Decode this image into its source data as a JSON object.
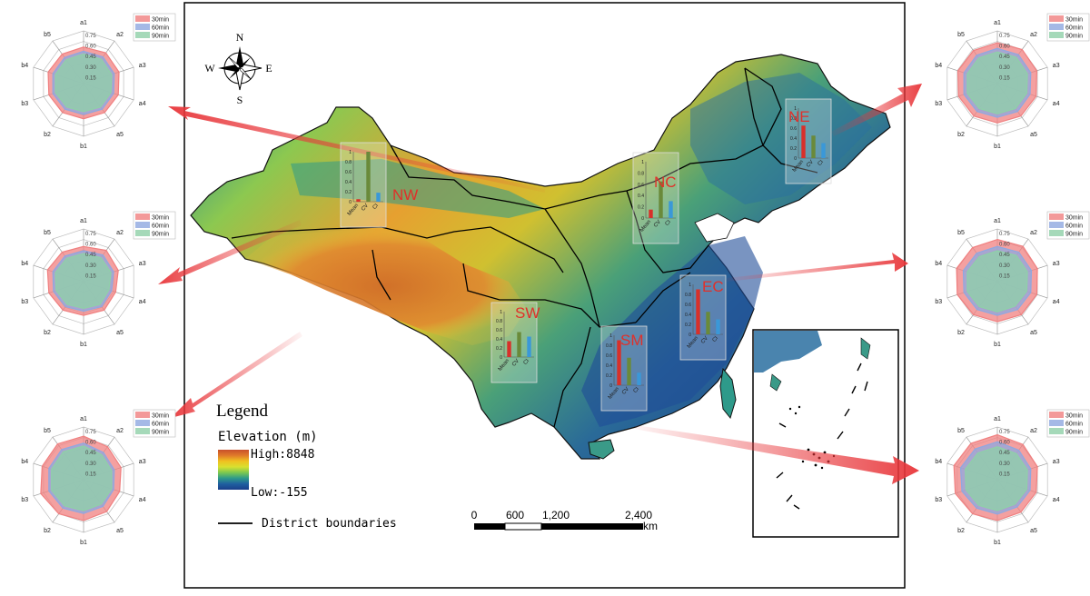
{
  "map": {
    "compass": {
      "n": "N",
      "s": "S",
      "e": "E",
      "w": "W"
    },
    "legend": {
      "title": "Legend",
      "elevation_label": "Elevation (m)",
      "high": "High:8848",
      "low": "Low:-155",
      "boundary_label": "District boundaries",
      "gradient_colors": [
        "#c8502a",
        "#e07a2a",
        "#f0c020",
        "#d8e030",
        "#7cc850",
        "#2e9a8a",
        "#1f5fa0",
        "#1b3f8a"
      ],
      "boundary_color": "#000000"
    },
    "scale": {
      "labels": [
        "0",
        "600",
        "1,200",
        "2,400"
      ],
      "unit": "km"
    },
    "regions": [
      {
        "id": "NW",
        "label": "NW",
        "color": "#e0302a"
      },
      {
        "id": "NC",
        "label": "NC",
        "color": "#e0302a"
      },
      {
        "id": "NE",
        "label": "NE",
        "color": "#e0302a"
      },
      {
        "id": "SW",
        "label": "SW",
        "color": "#e0302a"
      },
      {
        "id": "SM",
        "label": "SM",
        "color": "#e0302a"
      },
      {
        "id": "EC",
        "label": "EC",
        "color": "#e0302a"
      }
    ],
    "colors": {
      "ocean": "#ffffff",
      "arrow": "#e8363a"
    }
  },
  "chart_data": [
    {
      "type": "radar",
      "id": "radar-nw",
      "linked_region": "NW",
      "axes": [
        "a1",
        "a2",
        "a3",
        "a4",
        "a5",
        "b1",
        "b2",
        "b3",
        "b4",
        "b5"
      ],
      "ticks": [
        "0.75",
        "0.60",
        "0.45",
        "0.30",
        "0.15"
      ],
      "rmax": 0.75,
      "series": [
        {
          "name": "30min",
          "color": "#f08080",
          "values": [
            0.52,
            0.54,
            0.53,
            0.52,
            0.51,
            0.5,
            0.51,
            0.52,
            0.53,
            0.52
          ]
        },
        {
          "name": "60min",
          "color": "#8fa8e0",
          "values": [
            0.46,
            0.47,
            0.46,
            0.45,
            0.45,
            0.44,
            0.45,
            0.46,
            0.46,
            0.46
          ]
        },
        {
          "name": "90min",
          "color": "#8fd0a8",
          "values": [
            0.42,
            0.43,
            0.42,
            0.41,
            0.41,
            0.4,
            0.41,
            0.42,
            0.42,
            0.42
          ]
        }
      ]
    },
    {
      "type": "radar",
      "id": "radar-sw",
      "linked_region": "SW",
      "axes": [
        "a1",
        "a2",
        "a3",
        "a4",
        "a5",
        "b1",
        "b2",
        "b3",
        "b4",
        "b5"
      ],
      "ticks": [
        "0.75",
        "0.60",
        "0.45",
        "0.30",
        "0.15"
      ],
      "rmax": 0.75,
      "series": [
        {
          "name": "30min",
          "color": "#f08080",
          "values": [
            0.5,
            0.55,
            0.52,
            0.48,
            0.5,
            0.48,
            0.5,
            0.52,
            0.54,
            0.52
          ]
        },
        {
          "name": "60min",
          "color": "#8fa8e0",
          "values": [
            0.44,
            0.47,
            0.45,
            0.42,
            0.44,
            0.42,
            0.44,
            0.45,
            0.46,
            0.45
          ]
        },
        {
          "name": "90min",
          "color": "#8fd0a8",
          "values": [
            0.4,
            0.42,
            0.41,
            0.38,
            0.4,
            0.38,
            0.4,
            0.41,
            0.42,
            0.41
          ]
        }
      ]
    },
    {
      "type": "radar",
      "id": "radar-sm",
      "linked_region": "SM",
      "axes": [
        "a1",
        "a2",
        "a3",
        "a4",
        "a5",
        "b1",
        "b2",
        "b3",
        "b4",
        "b5"
      ],
      "ticks": [
        "0.75",
        "0.60",
        "0.45",
        "0.30",
        "0.15"
      ],
      "rmax": 0.75,
      "series": [
        {
          "name": "30min",
          "color": "#f08080",
          "values": [
            0.62,
            0.58,
            0.56,
            0.54,
            0.56,
            0.58,
            0.6,
            0.64,
            0.62,
            0.63
          ]
        },
        {
          "name": "60min",
          "color": "#8fa8e0",
          "values": [
            0.52,
            0.48,
            0.46,
            0.45,
            0.47,
            0.48,
            0.5,
            0.52,
            0.52,
            0.53
          ]
        },
        {
          "name": "90min",
          "color": "#8fd0a8",
          "values": [
            0.48,
            0.44,
            0.42,
            0.42,
            0.43,
            0.44,
            0.46,
            0.48,
            0.48,
            0.49
          ]
        }
      ]
    },
    {
      "type": "radar",
      "id": "radar-ne",
      "linked_region": "NE",
      "axes": [
        "a1",
        "a2",
        "a3",
        "a4",
        "a5",
        "b1",
        "b2",
        "b3",
        "b4",
        "b5"
      ],
      "ticks": [
        "0.75",
        "0.60",
        "0.45",
        "0.30",
        "0.15"
      ],
      "rmax": 0.75,
      "series": [
        {
          "name": "30min",
          "color": "#f08080",
          "values": [
            0.58,
            0.6,
            0.59,
            0.58,
            0.57,
            0.56,
            0.57,
            0.58,
            0.59,
            0.58
          ]
        },
        {
          "name": "60min",
          "color": "#8fa8e0",
          "values": [
            0.5,
            0.51,
            0.5,
            0.49,
            0.49,
            0.48,
            0.49,
            0.5,
            0.5,
            0.5
          ]
        },
        {
          "name": "90min",
          "color": "#8fd0a8",
          "values": [
            0.45,
            0.46,
            0.45,
            0.44,
            0.44,
            0.43,
            0.44,
            0.45,
            0.45,
            0.45
          ]
        }
      ]
    },
    {
      "type": "radar",
      "id": "radar-nc",
      "linked_region": "NC",
      "axes": [
        "a1",
        "a2",
        "a3",
        "a4",
        "a5",
        "b1",
        "b2",
        "b3",
        "b4",
        "b5"
      ],
      "ticks": [
        "0.75",
        "0.60",
        "0.45",
        "0.30",
        "0.15"
      ],
      "rmax": 0.75,
      "series": [
        {
          "name": "30min",
          "color": "#f08080",
          "values": [
            0.6,
            0.62,
            0.6,
            0.59,
            0.58,
            0.57,
            0.58,
            0.6,
            0.61,
            0.6
          ]
        },
        {
          "name": "60min",
          "color": "#8fa8e0",
          "values": [
            0.5,
            0.52,
            0.51,
            0.5,
            0.49,
            0.48,
            0.49,
            0.5,
            0.51,
            0.5
          ]
        },
        {
          "name": "90min",
          "color": "#8fd0a8",
          "values": [
            0.44,
            0.46,
            0.45,
            0.44,
            0.43,
            0.43,
            0.44,
            0.45,
            0.45,
            0.44
          ]
        }
      ]
    },
    {
      "type": "radar",
      "id": "radar-ec",
      "linked_region": "EC",
      "axes": [
        "a1",
        "a2",
        "a3",
        "a4",
        "a5",
        "b1",
        "b2",
        "b3",
        "b4",
        "b5"
      ],
      "ticks": [
        "0.75",
        "0.60",
        "0.45",
        "0.30",
        "0.15"
      ],
      "rmax": 0.75,
      "series": [
        {
          "name": "30min",
          "color": "#f08080",
          "values": [
            0.64,
            0.62,
            0.6,
            0.58,
            0.57,
            0.58,
            0.6,
            0.63,
            0.65,
            0.64
          ]
        },
        {
          "name": "60min",
          "color": "#8fa8e0",
          "values": [
            0.54,
            0.52,
            0.5,
            0.49,
            0.48,
            0.49,
            0.5,
            0.53,
            0.55,
            0.54
          ]
        },
        {
          "name": "90min",
          "color": "#8fd0a8",
          "values": [
            0.47,
            0.46,
            0.45,
            0.44,
            0.43,
            0.44,
            0.45,
            0.47,
            0.48,
            0.47
          ]
        }
      ]
    },
    {
      "type": "bar",
      "id": "bar-nw",
      "linked_region": "NW",
      "categories": [
        "Mean",
        "CV",
        "CI"
      ],
      "ticks": [
        "1",
        "0.8",
        "0.6",
        "0.4",
        "0.2",
        "0"
      ],
      "ylim": [
        0,
        1
      ],
      "values": [
        0.05,
        1.0,
        0.18
      ],
      "colors": [
        "#d8302a",
        "#6a8a3a",
        "#3a98d8"
      ]
    },
    {
      "type": "bar",
      "id": "bar-nc",
      "linked_region": "NC",
      "categories": [
        "Mean",
        "CV",
        "CI"
      ],
      "ticks": [
        "1",
        "0.8",
        "0.6",
        "0.4",
        "0.2",
        "0"
      ],
      "ylim": [
        0,
        1
      ],
      "values": [
        0.15,
        0.65,
        0.3
      ],
      "colors": [
        "#d8302a",
        "#6a8a3a",
        "#3a98d8"
      ]
    },
    {
      "type": "bar",
      "id": "bar-ne",
      "linked_region": "NE",
      "categories": [
        "Mean",
        "CV",
        "CI"
      ],
      "ticks": [
        "1",
        "0.8",
        "0.6",
        "0.4",
        "0.2",
        "0"
      ],
      "ylim": [
        0,
        1
      ],
      "values": [
        0.65,
        0.45,
        0.3
      ],
      "colors": [
        "#d8302a",
        "#6a8a3a",
        "#3a98d8"
      ]
    },
    {
      "type": "bar",
      "id": "bar-sw",
      "linked_region": "SW",
      "categories": [
        "Mean",
        "CV",
        "CI"
      ],
      "ticks": [
        "1",
        "0.8",
        "0.6",
        "0.4",
        "0.2",
        "0"
      ],
      "ylim": [
        0,
        1
      ],
      "values": [
        0.35,
        0.55,
        0.45
      ],
      "colors": [
        "#d8302a",
        "#6a8a3a",
        "#3a98d8"
      ]
    },
    {
      "type": "bar",
      "id": "bar-sm",
      "linked_region": "SM",
      "categories": [
        "Mean",
        "CV",
        "CI"
      ],
      "ticks": [
        "1",
        "0.8",
        "0.6",
        "0.4",
        "0.2",
        "0"
      ],
      "ylim": [
        0,
        1
      ],
      "values": [
        0.9,
        0.55,
        0.25
      ],
      "colors": [
        "#d8302a",
        "#6a8a3a",
        "#3a98d8"
      ]
    },
    {
      "type": "bar",
      "id": "bar-ec",
      "linked_region": "EC",
      "categories": [
        "Mean",
        "CV",
        "CI"
      ],
      "ticks": [
        "1",
        "0.8",
        "0.6",
        "0.4",
        "0.2",
        "0"
      ],
      "ylim": [
        0,
        1
      ],
      "values": [
        0.9,
        0.45,
        0.3
      ],
      "colors": [
        "#d8302a",
        "#6a8a3a",
        "#3a98d8"
      ]
    }
  ]
}
